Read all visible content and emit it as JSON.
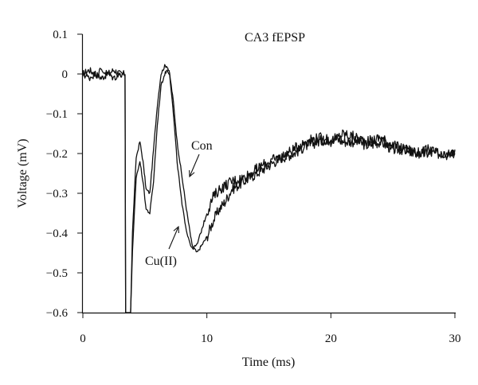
{
  "chart_data": {
    "type": "line",
    "title": "CA3 fEPSP",
    "xlabel": "Time (ms)",
    "ylabel": "Voltage (mV)",
    "xlim": [
      0,
      30
    ],
    "ylim": [
      -0.6,
      0.1
    ],
    "xticks": [
      0,
      10,
      20,
      30
    ],
    "xtick_labels": [
      "0",
      "10",
      "20",
      "30"
    ],
    "yticks": [
      0.1,
      0,
      -0.1,
      -0.2,
      -0.3,
      -0.4,
      -0.5,
      -0.6
    ],
    "ytick_labels": [
      "0.1",
      "0",
      "−0.1",
      "−0.2",
      "−0.3",
      "−0.4",
      "−0.5",
      "−0.6"
    ],
    "grid": false,
    "series": [
      {
        "name": "Con",
        "x": [
          0,
          0.5,
          1,
          1.5,
          2,
          2.5,
          3,
          3.4,
          3.45,
          3.6,
          3.85,
          4.0,
          4.3,
          4.6,
          4.85,
          5.1,
          5.4,
          5.7,
          6.0,
          6.3,
          6.6,
          6.8,
          7.0,
          7.3,
          7.6,
          8.0,
          8.4,
          8.8,
          9.2,
          9.6,
          10.0,
          10.5,
          11,
          11.5,
          12,
          13,
          14,
          15,
          16,
          17,
          18,
          19,
          20,
          21,
          22,
          23,
          24,
          25,
          26,
          27,
          28,
          29,
          30
        ],
        "y": [
          0.0,
          0.01,
          0.0,
          -0.01,
          0.0,
          0.01,
          0.0,
          0.0,
          -0.6,
          -0.6,
          -0.6,
          -0.4,
          -0.21,
          -0.17,
          -0.22,
          -0.29,
          -0.3,
          -0.19,
          -0.08,
          0.0,
          0.02,
          0.02,
          0.0,
          -0.07,
          -0.17,
          -0.26,
          -0.35,
          -0.43,
          -0.45,
          -0.43,
          -0.41,
          -0.37,
          -0.34,
          -0.32,
          -0.29,
          -0.27,
          -0.25,
          -0.23,
          -0.21,
          -0.2,
          -0.18,
          -0.17,
          -0.16,
          -0.17,
          -0.17,
          -0.18,
          -0.17,
          -0.19,
          -0.19,
          -0.2,
          -0.2,
          -0.2,
          -0.19
        ]
      },
      {
        "name": "Cu(II)",
        "x": [
          0,
          0.5,
          1,
          1.5,
          2,
          2.5,
          3,
          3.4,
          3.45,
          3.6,
          3.85,
          4.0,
          4.3,
          4.6,
          4.85,
          5.1,
          5.4,
          5.7,
          6.0,
          6.3,
          6.6,
          6.8,
          7.0,
          7.3,
          7.6,
          8.0,
          8.4,
          8.8,
          9.2,
          9.6,
          10.0,
          10.5,
          11,
          11.5,
          12,
          13,
          14,
          15,
          16,
          17,
          18,
          19,
          20,
          21,
          22,
          23,
          24,
          25,
          26,
          27,
          28,
          29,
          30
        ],
        "y": [
          0.0,
          -0.01,
          0.0,
          0.01,
          0.0,
          -0.01,
          0.0,
          0.0,
          -0.6,
          -0.6,
          -0.6,
          -0.45,
          -0.26,
          -0.22,
          -0.27,
          -0.34,
          -0.35,
          -0.27,
          -0.13,
          -0.03,
          0.0,
          0.01,
          0.0,
          -0.1,
          -0.22,
          -0.33,
          -0.4,
          -0.44,
          -0.43,
          -0.39,
          -0.35,
          -0.31,
          -0.29,
          -0.28,
          -0.27,
          -0.26,
          -0.24,
          -0.22,
          -0.21,
          -0.19,
          -0.17,
          -0.16,
          -0.17,
          -0.15,
          -0.16,
          -0.17,
          -0.16,
          -0.18,
          -0.19,
          -0.2,
          -0.19,
          -0.21,
          -0.2
        ]
      }
    ],
    "annotations": [
      {
        "text": "Con",
        "target_series": "Con"
      },
      {
        "text": "Cu(II)",
        "target_series": "Cu(II)"
      }
    ]
  }
}
